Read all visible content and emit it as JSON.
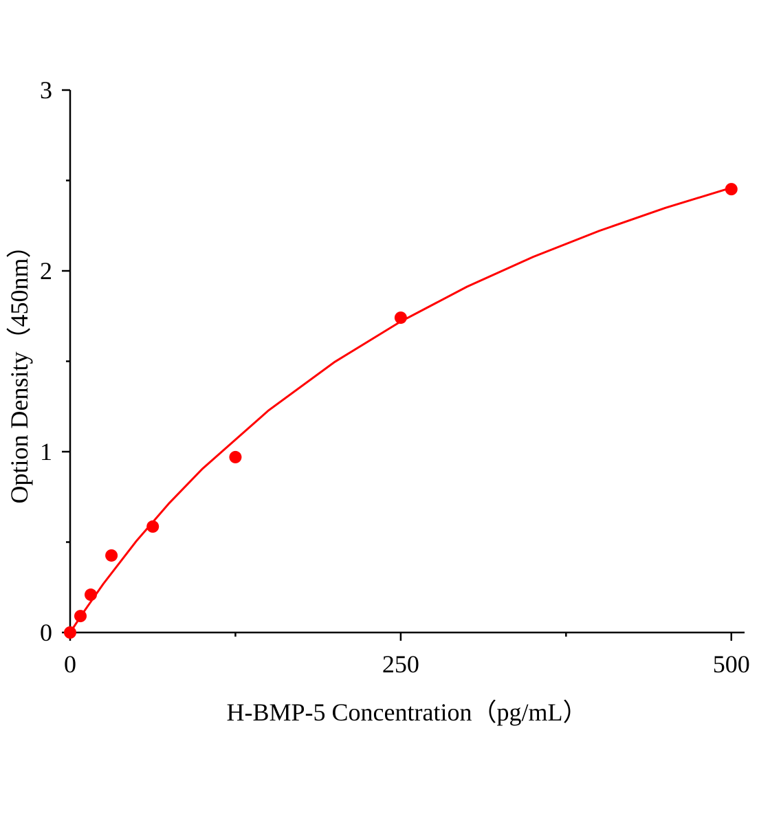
{
  "chart_data": {
    "type": "scatter",
    "x_label": "H-BMP-5 Concentration（pg/mL）",
    "y_label": "Option Density（450nm）",
    "xlim": [
      0,
      510
    ],
    "ylim": [
      0,
      3
    ],
    "xticks": [
      0,
      250,
      500
    ],
    "yticks": [
      0,
      1,
      2,
      3
    ],
    "xminor": [
      125,
      375
    ],
    "yminor": [
      0.5,
      1.5,
      2.5
    ],
    "grid": false,
    "series": [
      {
        "color": "#ff0000",
        "mode": "markers",
        "x": [
          0,
          7.8,
          15.6,
          31.25,
          62.5,
          125,
          250,
          500
        ],
        "values": [
          0,
          0.091,
          0.209,
          0.426,
          0.586,
          0.97,
          1.741,
          2.452
        ]
      },
      {
        "color": "#ff0000",
        "mode": "line",
        "x": [
          0,
          10,
          25,
          50,
          75,
          100,
          150,
          200,
          250,
          300,
          350,
          400,
          450,
          500
        ],
        "values": [
          0,
          0.111,
          0.268,
          0.505,
          0.716,
          0.905,
          1.228,
          1.496,
          1.72,
          1.912,
          2.077,
          2.221,
          2.348,
          2.46
        ]
      }
    ]
  }
}
